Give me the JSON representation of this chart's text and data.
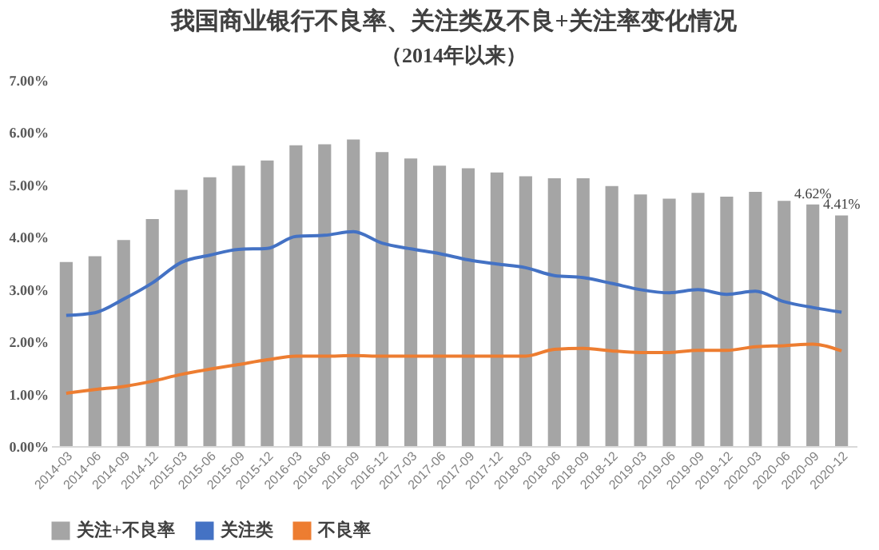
{
  "chart_data": {
    "type": "bar",
    "title": "我国商业银行不良率、关注类及不良+关注率变化情况",
    "subtitle": "（2014年以来）",
    "categories": [
      "2014-03",
      "2014-06",
      "2014-09",
      "2014-12",
      "2015-03",
      "2015-06",
      "2015-09",
      "2015-12",
      "2016-03",
      "2016-06",
      "2016-09",
      "2016-12",
      "2017-03",
      "2017-06",
      "2017-09",
      "2017-12",
      "2018-03",
      "2018-06",
      "2018-09",
      "2018-12",
      "2019-03",
      "2019-06",
      "2019-09",
      "2019-12",
      "2020-03",
      "2020-06",
      "2020-09",
      "2020-12"
    ],
    "series": [
      {
        "name": "关注+不良率",
        "color": "#a5a5a5",
        "values": [
          3.52,
          3.63,
          3.94,
          4.34,
          4.9,
          5.14,
          5.36,
          5.46,
          5.75,
          5.77,
          5.86,
          5.62,
          5.5,
          5.36,
          5.31,
          5.23,
          5.16,
          5.12,
          5.12,
          4.97,
          4.81,
          4.73,
          4.84,
          4.77,
          4.86,
          4.69,
          4.62,
          4.41
        ],
        "value_labels": [
          null,
          null,
          null,
          null,
          null,
          null,
          null,
          null,
          null,
          null,
          null,
          null,
          null,
          null,
          null,
          null,
          null,
          null,
          null,
          null,
          null,
          null,
          null,
          null,
          null,
          null,
          "4.62%",
          "4.41%"
        ]
      },
      {
        "name": "关注类",
        "type": "line",
        "color": "#4472c4",
        "values": [
          2.5,
          2.55,
          2.81,
          3.12,
          3.51,
          3.65,
          3.76,
          3.78,
          4.01,
          4.03,
          4.1,
          3.88,
          3.77,
          3.68,
          3.56,
          3.48,
          3.41,
          3.26,
          3.22,
          3.11,
          2.99,
          2.93,
          2.99,
          2.9,
          2.96,
          2.76,
          2.65,
          2.56
        ]
      },
      {
        "name": "不良率",
        "type": "line",
        "color": "#ed7d31",
        "values": [
          1.01,
          1.08,
          1.14,
          1.24,
          1.37,
          1.47,
          1.56,
          1.65,
          1.72,
          1.72,
          1.73,
          1.72,
          1.72,
          1.72,
          1.72,
          1.72,
          1.72,
          1.85,
          1.87,
          1.82,
          1.79,
          1.79,
          1.83,
          1.83,
          1.9,
          1.92,
          1.95,
          1.82
        ]
      }
    ],
    "ylim": [
      0,
      7
    ],
    "yticks": [
      {
        "value": 0,
        "label": "0.00%"
      },
      {
        "value": 1,
        "label": "1.00%"
      },
      {
        "value": 2,
        "label": "2.00%"
      },
      {
        "value": 3,
        "label": "3.00%"
      },
      {
        "value": 4,
        "label": "4.00%"
      },
      {
        "value": 5,
        "label": "5.00%"
      },
      {
        "value": 6,
        "label": "6.00%"
      },
      {
        "value": 7,
        "label": "7.00%"
      }
    ],
    "legend": "bottom",
    "line_style": "solid"
  }
}
